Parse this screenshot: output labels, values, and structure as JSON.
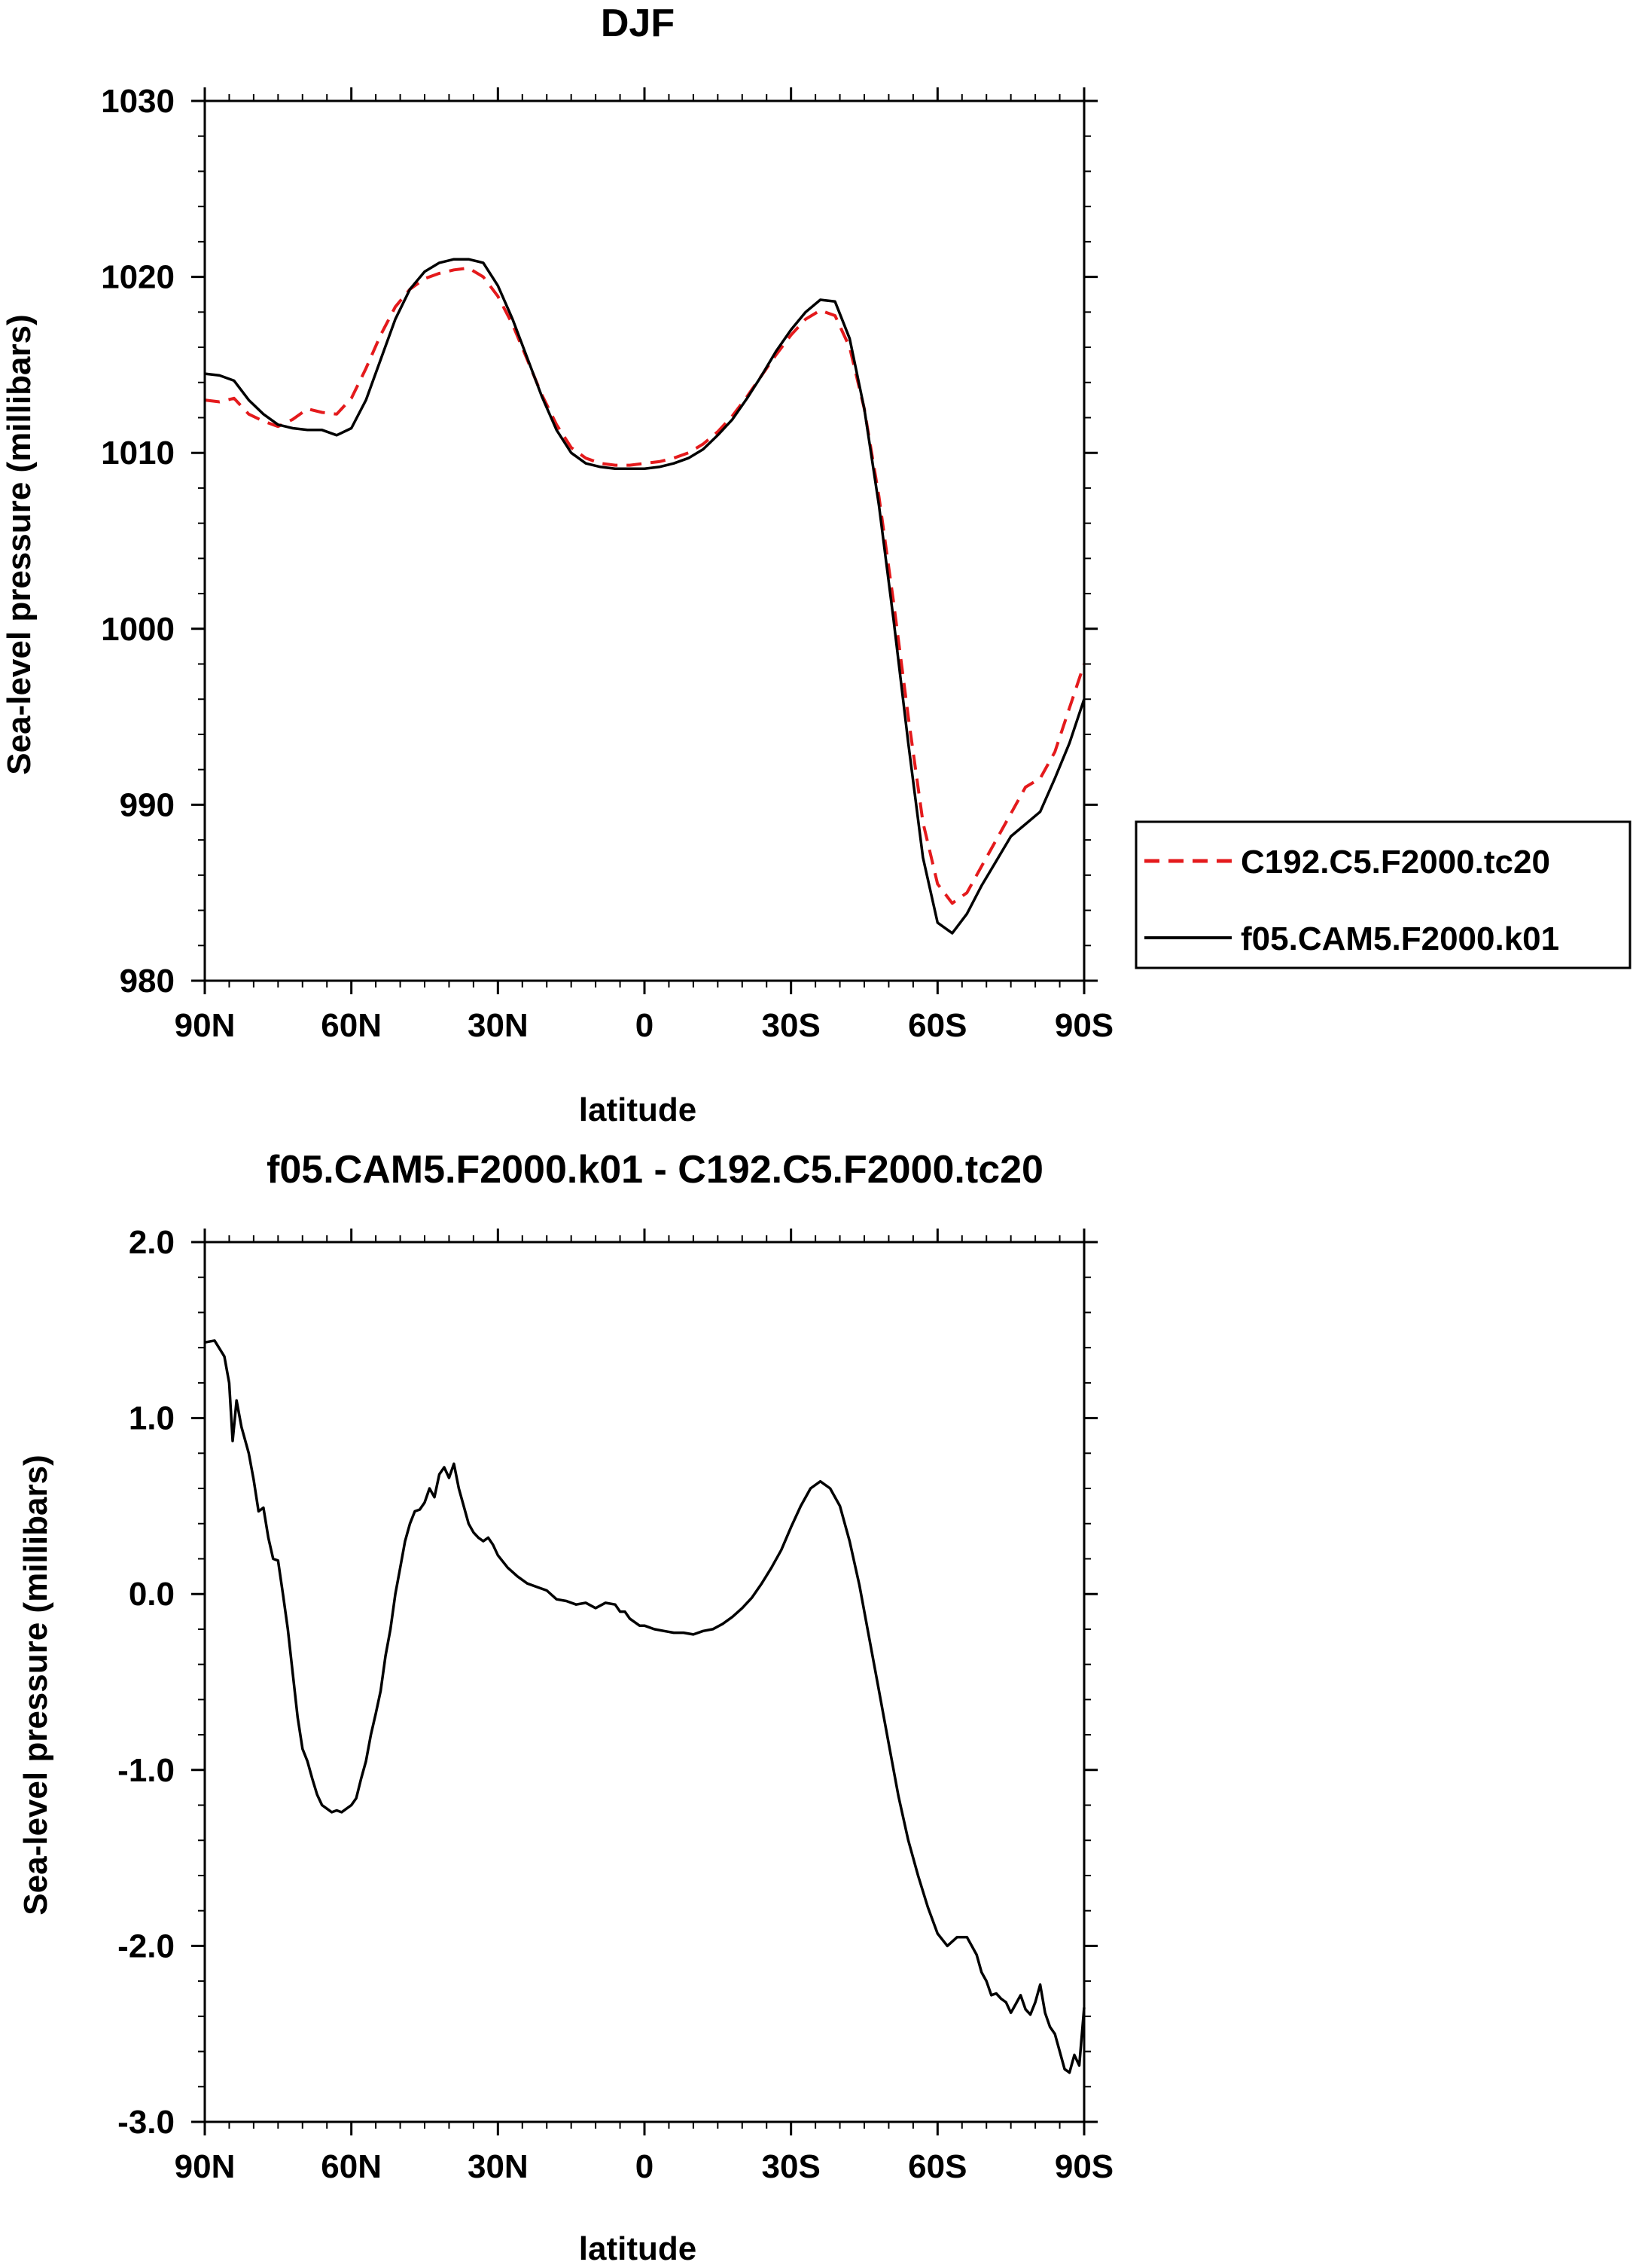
{
  "chart_data": [
    {
      "type": "line",
      "title": "DJF",
      "xlabel": "latitude",
      "ylabel": "Sea-level pressure (millibars)",
      "xlim": [
        90,
        -90
      ],
      "ylim": [
        980,
        1030
      ],
      "xticks": [
        90,
        60,
        30,
        0,
        -30,
        -60,
        -90
      ],
      "xtick_labels": [
        "90N",
        "60N",
        "30N",
        "0",
        "30S",
        "60S",
        "90S"
      ],
      "yticks": [
        980,
        990,
        1000,
        1010,
        1020,
        1030
      ],
      "ytick_labels": [
        "980",
        "990",
        "1000",
        "1010",
        "1020",
        "1030"
      ],
      "grid": false,
      "legend_position": "right-outside",
      "series": [
        {
          "name": "C192.C5.F2000.tc20",
          "color": "#e41a1c",
          "dash": "dashed",
          "x": [
            90,
            87,
            84,
            81,
            78,
            75,
            72,
            69,
            66,
            63,
            60,
            57,
            54,
            51,
            48,
            45,
            42,
            39,
            36,
            33,
            30,
            27,
            24,
            21,
            18,
            15,
            12,
            9,
            6,
            3,
            0,
            -3,
            -6,
            -9,
            -12,
            -15,
            -18,
            -21,
            -24,
            -27,
            -30,
            -33,
            -36,
            -39,
            -42,
            -45,
            -48,
            -51,
            -54,
            -57,
            -60,
            -63,
            -66,
            -69,
            -72,
            -75,
            -78,
            -81,
            -84,
            -87,
            -90
          ],
          "y": [
            1013.0,
            1012.9,
            1013.1,
            1012.2,
            1011.8,
            1011.5,
            1011.9,
            1012.5,
            1012.3,
            1012.2,
            1013.1,
            1014.8,
            1016.7,
            1018.3,
            1019.3,
            1019.9,
            1020.2,
            1020.4,
            1020.5,
            1020.0,
            1018.9,
            1017.3,
            1015.3,
            1013.3,
            1011.6,
            1010.3,
            1009.7,
            1009.4,
            1009.3,
            1009.3,
            1009.4,
            1009.5,
            1009.7,
            1010.0,
            1010.5,
            1011.2,
            1012.1,
            1013.2,
            1014.4,
            1015.6,
            1016.7,
            1017.6,
            1018.1,
            1017.8,
            1016.0,
            1012.5,
            1007.5,
            1001.5,
            995.0,
            989.0,
            985.5,
            984.4,
            985.0,
            986.5,
            988.0,
            989.5,
            991.0,
            991.5,
            993.0,
            995.5,
            998.0
          ]
        },
        {
          "name": "f05.CAM5.F2000.k01",
          "color": "#000000",
          "dash": "solid",
          "x": [
            90,
            87,
            84,
            81,
            78,
            75,
            72,
            69,
            66,
            63,
            60,
            57,
            54,
            51,
            48,
            45,
            42,
            39,
            36,
            33,
            30,
            27,
            24,
            21,
            18,
            15,
            12,
            9,
            6,
            3,
            0,
            -3,
            -6,
            -9,
            -12,
            -15,
            -18,
            -21,
            -24,
            -27,
            -30,
            -33,
            -36,
            -39,
            -42,
            -45,
            -48,
            -51,
            -54,
            -57,
            -60,
            -63,
            -66,
            -69,
            -72,
            -75,
            -78,
            -81,
            -84,
            -87,
            -90
          ],
          "y": [
            1014.5,
            1014.4,
            1014.1,
            1013.0,
            1012.2,
            1011.6,
            1011.4,
            1011.3,
            1011.3,
            1011.0,
            1011.4,
            1013.0,
            1015.3,
            1017.6,
            1019.3,
            1020.3,
            1020.8,
            1021.0,
            1021.0,
            1020.8,
            1019.5,
            1017.6,
            1015.4,
            1013.2,
            1011.3,
            1010.0,
            1009.4,
            1009.2,
            1009.1,
            1009.1,
            1009.1,
            1009.2,
            1009.4,
            1009.7,
            1010.2,
            1011.0,
            1011.9,
            1013.1,
            1014.4,
            1015.8,
            1017.0,
            1018.0,
            1018.7,
            1018.6,
            1016.5,
            1012.5,
            1007.0,
            1000.5,
            993.5,
            987.0,
            983.3,
            982.7,
            983.8,
            985.4,
            986.8,
            988.2,
            988.9,
            989.6,
            991.5,
            993.5,
            996.0
          ]
        }
      ]
    },
    {
      "type": "line",
      "title": "f05.CAM5.F2000.k01 - C192.C5.F2000.tc20",
      "xlabel": "latitude",
      "ylabel": "Sea-level pressure (millibars)",
      "xlim": [
        90,
        -90
      ],
      "ylim": [
        -3.0,
        2.0
      ],
      "xticks": [
        90,
        60,
        30,
        0,
        -30,
        -60,
        -90
      ],
      "xtick_labels": [
        "90N",
        "60N",
        "30N",
        "0",
        "30S",
        "60S",
        "90S"
      ],
      "yticks": [
        -3.0,
        -2.0,
        -1.0,
        0.0,
        1.0,
        2.0
      ],
      "ytick_labels": [
        "-3.0",
        "-2.0",
        "-1.0",
        "0.0",
        "1.0",
        "2.0"
      ],
      "grid": false,
      "series": [
        {
          "color": "#000000",
          "dash": "solid",
          "x": [
            90,
            88,
            86,
            85,
            84.3,
            83.5,
            82.5,
            81,
            80,
            79,
            78,
            77,
            76,
            75,
            74,
            73,
            72,
            71,
            70,
            69,
            68,
            67,
            66,
            65,
            64,
            63,
            62,
            61,
            60,
            59,
            58,
            57,
            56,
            55,
            54,
            53,
            52,
            51,
            50,
            49,
            48,
            47,
            46,
            45,
            44,
            43,
            42,
            41,
            40,
            39,
            38,
            37,
            36,
            35,
            34,
            33,
            32,
            31,
            30,
            28,
            26,
            24,
            22,
            20,
            18,
            16,
            14,
            12,
            10,
            8,
            6,
            5,
            4,
            3,
            2,
            1,
            0,
            -2,
            -4,
            -6,
            -8,
            -10,
            -12,
            -14,
            -16,
            -18,
            -20,
            -22,
            -24,
            -26,
            -28,
            -30,
            -32,
            -34,
            -36,
            -38,
            -40,
            -42,
            -44,
            -46,
            -48,
            -50,
            -52,
            -54,
            -56,
            -58,
            -60,
            -62,
            -64,
            -66,
            -68,
            -69,
            -70,
            -71,
            -72,
            -73,
            -74,
            -75,
            -76,
            -77,
            -78,
            -79,
            -80,
            -81,
            -82,
            -83,
            -84,
            -85,
            -86,
            -87,
            -88,
            -89,
            -90
          ],
          "y": [
            1.43,
            1.44,
            1.35,
            1.2,
            0.87,
            1.1,
            0.95,
            0.8,
            0.65,
            0.47,
            0.49,
            0.32,
            0.2,
            0.19,
            0.0,
            -0.2,
            -0.45,
            -0.7,
            -0.88,
            -0.95,
            -1.05,
            -1.14,
            -1.2,
            -1.22,
            -1.24,
            -1.23,
            -1.24,
            -1.22,
            -1.2,
            -1.16,
            -1.05,
            -0.95,
            -0.8,
            -0.68,
            -0.55,
            -0.35,
            -0.2,
            0.0,
            0.15,
            0.3,
            0.4,
            0.47,
            0.48,
            0.52,
            0.6,
            0.55,
            0.68,
            0.72,
            0.66,
            0.74,
            0.6,
            0.5,
            0.4,
            0.35,
            0.32,
            0.3,
            0.32,
            0.28,
            0.22,
            0.15,
            0.1,
            0.06,
            0.04,
            0.02,
            -0.03,
            -0.04,
            -0.06,
            -0.05,
            -0.08,
            -0.05,
            -0.06,
            -0.1,
            -0.1,
            -0.14,
            -0.16,
            -0.18,
            -0.18,
            -0.2,
            -0.21,
            -0.22,
            -0.22,
            -0.23,
            -0.21,
            -0.2,
            -0.17,
            -0.13,
            -0.08,
            -0.02,
            0.06,
            0.15,
            0.25,
            0.38,
            0.5,
            0.6,
            0.64,
            0.6,
            0.5,
            0.3,
            0.05,
            -0.25,
            -0.55,
            -0.85,
            -1.15,
            -1.4,
            -1.6,
            -1.78,
            -1.93,
            -2.0,
            -1.95,
            -1.95,
            -2.05,
            -2.15,
            -2.2,
            -2.28,
            -2.27,
            -2.3,
            -2.32,
            -2.38,
            -2.33,
            -2.28,
            -2.36,
            -2.39,
            -2.32,
            -2.22,
            -2.38,
            -2.46,
            -2.5,
            -2.6,
            -2.7,
            -2.72,
            -2.62,
            -2.68,
            -2.35
          ]
        }
      ]
    }
  ]
}
